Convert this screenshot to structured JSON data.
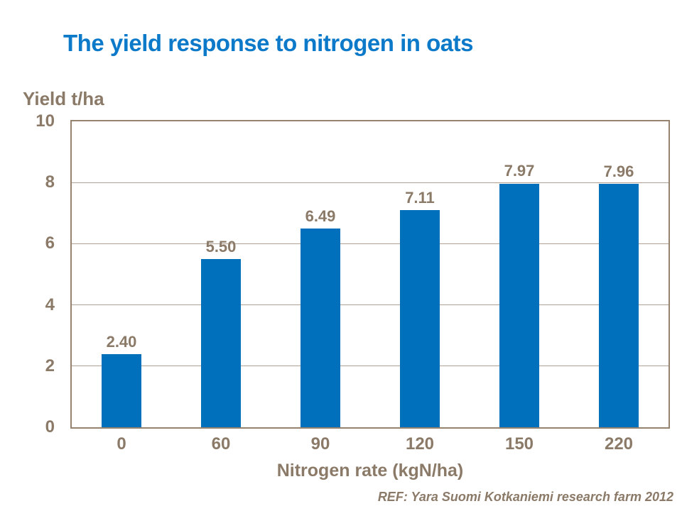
{
  "title": {
    "text": "The yield response to nitrogen in oats"
  },
  "footer": {
    "ref": "REF: Yara Suomi Kotkaniemi research farm 2012"
  },
  "colors": {
    "title_blue": "#0C79C9",
    "bar_blue": "#0070BD",
    "axis_text": "#8B7A68",
    "grid_line": "#AFA093",
    "plot_border": "#95826F"
  },
  "chart_data": {
    "type": "bar",
    "title": "The yield response to nitrogen in oats",
    "categories": [
      "0",
      "60",
      "90",
      "120",
      "150",
      "220"
    ],
    "values": [
      2.4,
      5.5,
      6.49,
      7.11,
      7.97,
      7.96
    ],
    "value_labels": [
      "2.40",
      "5.50",
      "6.49",
      "7.11",
      "7.97",
      "7.96"
    ],
    "xlabel": "Nitrogen rate (kgN/ha)",
    "ylabel": "Yield t/ha",
    "ylim": [
      0,
      10
    ],
    "yticks": [
      0,
      2,
      4,
      6,
      8,
      10
    ],
    "grid": "horizontal gridlines at ticks, plot area fully framed",
    "legend": "none",
    "bar_color": "#0070BD"
  }
}
